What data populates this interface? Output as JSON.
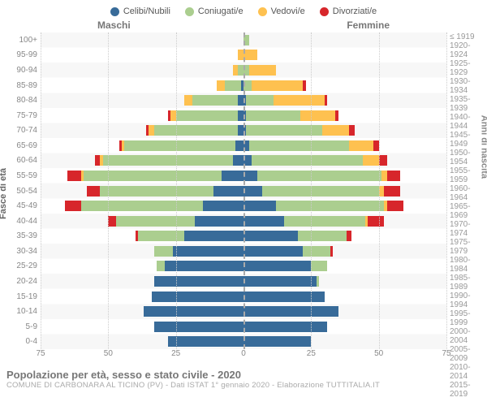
{
  "legend": [
    {
      "label": "Celibi/Nubili",
      "color": "#386b99"
    },
    {
      "label": "Coniugati/e",
      "color": "#abce8f"
    },
    {
      "label": "Vedovi/e",
      "color": "#fec150"
    },
    {
      "label": "Divorziati/e",
      "color": "#d7262b"
    }
  ],
  "gender_m": "Maschi",
  "gender_f": "Femmine",
  "y_left_title": "Fasce di età",
  "y_right_title": "Anni di nascita",
  "age_labels": [
    "100+",
    "95-99",
    "90-94",
    "85-89",
    "80-84",
    "75-79",
    "70-74",
    "65-69",
    "60-64",
    "55-59",
    "50-54",
    "45-49",
    "40-44",
    "35-39",
    "30-34",
    "25-29",
    "20-24",
    "15-19",
    "10-14",
    "5-9",
    "0-4"
  ],
  "year_labels": [
    "≤ 1919",
    "1920-1924",
    "1925-1929",
    "1930-1934",
    "1935-1939",
    "1940-1944",
    "1945-1949",
    "1950-1954",
    "1955-1959",
    "1960-1964",
    "1965-1969",
    "1970-1974",
    "1975-1979",
    "1980-1984",
    "1985-1989",
    "1990-1994",
    "1995-1999",
    "2000-2004",
    "2005-2009",
    "2010-2014",
    "2015-2019"
  ],
  "max_value": 75,
  "x_ticks": [
    75,
    50,
    25,
    0,
    25,
    50,
    75
  ],
  "colors": {
    "celibi": "#386b99",
    "coniugati": "#abce8f",
    "vedovi": "#fec150",
    "divorziati": "#d7262b"
  },
  "background_color": "#ffffff",
  "grid_color": "#cccccc",
  "stripe_color": "#f7f7f7",
  "data": [
    {
      "m": [
        0,
        0,
        0,
        0
      ],
      "f": [
        0,
        2,
        0,
        0
      ]
    },
    {
      "m": [
        0,
        0,
        2,
        0
      ],
      "f": [
        0,
        0,
        5,
        0
      ]
    },
    {
      "m": [
        0,
        2,
        2,
        0
      ],
      "f": [
        0,
        2,
        10,
        0
      ]
    },
    {
      "m": [
        1,
        6,
        3,
        0
      ],
      "f": [
        0,
        3,
        19,
        1
      ]
    },
    {
      "m": [
        2,
        17,
        3,
        0
      ],
      "f": [
        1,
        10,
        19,
        1
      ]
    },
    {
      "m": [
        2,
        23,
        2,
        1
      ],
      "f": [
        1,
        20,
        13,
        1
      ]
    },
    {
      "m": [
        2,
        31,
        2,
        1
      ],
      "f": [
        1,
        28,
        10,
        2
      ]
    },
    {
      "m": [
        3,
        41,
        1,
        1
      ],
      "f": [
        2,
        37,
        9,
        2
      ]
    },
    {
      "m": [
        4,
        48,
        1,
        2
      ],
      "f": [
        3,
        41,
        6,
        3
      ]
    },
    {
      "m": [
        8,
        51,
        1,
        5
      ],
      "f": [
        5,
        46,
        2,
        5
      ]
    },
    {
      "m": [
        11,
        42,
        0,
        5
      ],
      "f": [
        7,
        43,
        2,
        6
      ]
    },
    {
      "m": [
        15,
        45,
        0,
        6
      ],
      "f": [
        12,
        40,
        1,
        6
      ]
    },
    {
      "m": [
        18,
        29,
        0,
        3
      ],
      "f": [
        15,
        30,
        1,
        6
      ]
    },
    {
      "m": [
        22,
        17,
        0,
        1
      ],
      "f": [
        20,
        18,
        0,
        2
      ]
    },
    {
      "m": [
        26,
        7,
        0,
        0
      ],
      "f": [
        22,
        10,
        0,
        1
      ]
    },
    {
      "m": [
        29,
        3,
        0,
        0
      ],
      "f": [
        25,
        6,
        0,
        0
      ]
    },
    {
      "m": [
        33,
        0,
        0,
        0
      ],
      "f": [
        27,
        1,
        0,
        0
      ]
    },
    {
      "m": [
        34,
        0,
        0,
        0
      ],
      "f": [
        30,
        0,
        0,
        0
      ]
    },
    {
      "m": [
        37,
        0,
        0,
        0
      ],
      "f": [
        35,
        0,
        0,
        0
      ]
    },
    {
      "m": [
        33,
        0,
        0,
        0
      ],
      "f": [
        31,
        0,
        0,
        0
      ]
    },
    {
      "m": [
        28,
        0,
        0,
        0
      ],
      "f": [
        25,
        0,
        0,
        0
      ]
    }
  ],
  "title": "Popolazione per età, sesso e stato civile - 2020",
  "subtitle": "COMUNE DI CARBONARA AL TICINO (PV) - Dati ISTAT 1° gennaio 2020 - Elaborazione TUTTITALIA.IT"
}
